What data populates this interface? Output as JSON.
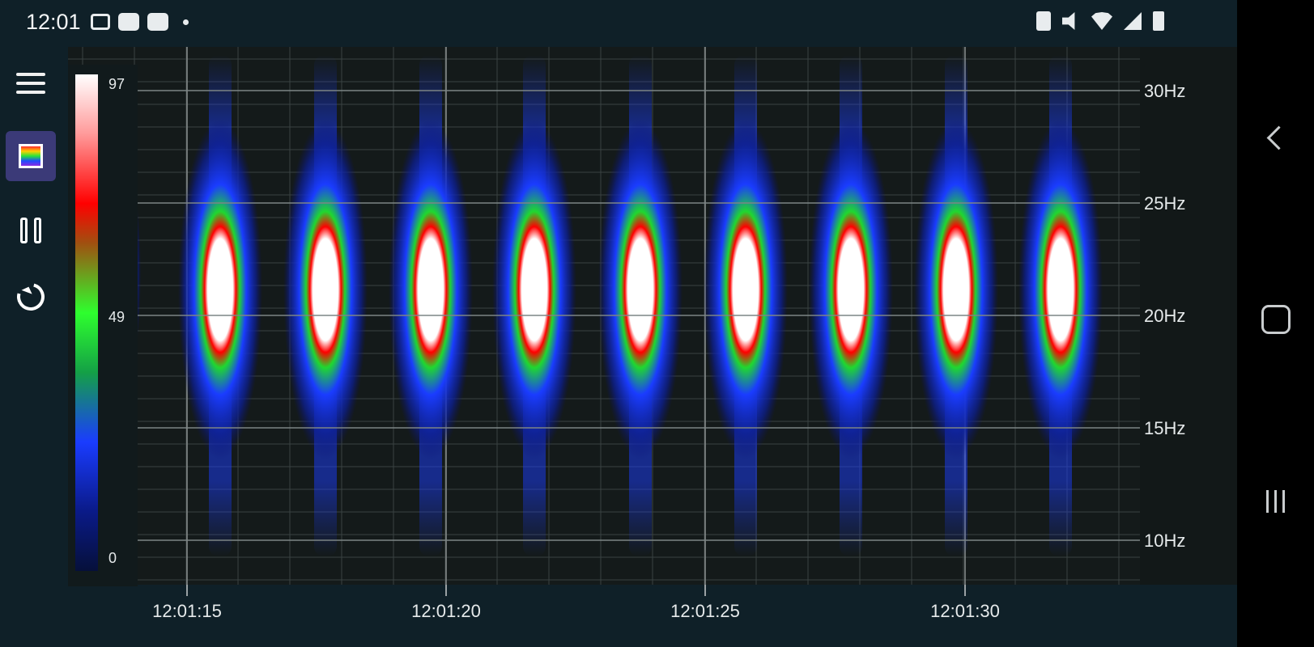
{
  "status_bar": {
    "time": "12:01",
    "notification_icons": [
      "k-icon",
      "teams-icon",
      "teams-icon",
      "dot-icon"
    ],
    "system_icons": [
      "clipboard-icon",
      "mute-icon",
      "wifi-icon",
      "signal-icon",
      "battery-charging-icon"
    ]
  },
  "toolbar": {
    "items": [
      "menu-icon",
      "spectrogram-icon",
      "pause-icon",
      "reset-icon"
    ],
    "active": "spectrogram-icon"
  },
  "colorbar": {
    "max_label": "97",
    "mid_label": "49",
    "min_label": "0"
  },
  "y_axis": {
    "ticks": [
      "30Hz",
      "25Hz",
      "20Hz",
      "15Hz",
      "10Hz"
    ],
    "values": [
      30,
      25,
      20,
      15,
      10
    ]
  },
  "x_axis": {
    "ticks": [
      "12:01:15",
      "12:01:20",
      "12:01:25",
      "12:01:30"
    ]
  },
  "nav_bar": {
    "buttons": [
      "back",
      "home",
      "recents"
    ]
  },
  "colors": {
    "background": "#0f2028",
    "plot_bg": "#121818",
    "active_button": "#3b3a78"
  }
}
